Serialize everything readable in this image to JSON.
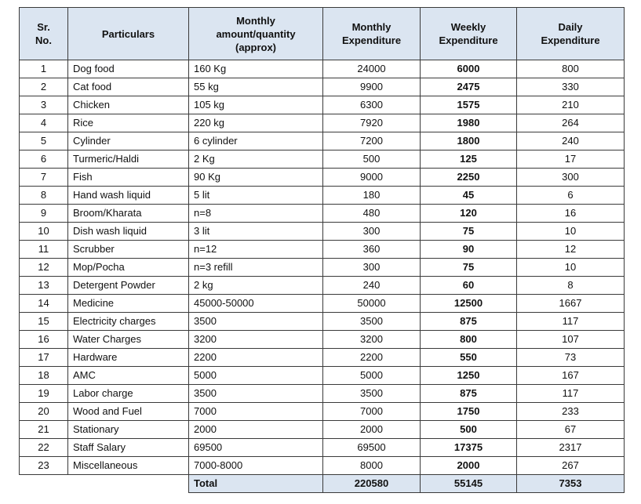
{
  "table": {
    "header": {
      "sr": [
        "Sr.",
        "No."
      ],
      "particulars": "Particulars",
      "quantity": [
        "Monthly",
        "amount/quantity",
        "(approx)"
      ],
      "monthly": [
        "Monthly",
        "Expenditure"
      ],
      "weekly": [
        "Weekly",
        "Expenditure"
      ],
      "daily": [
        "Daily",
        "Expenditure"
      ]
    },
    "rows": [
      {
        "sr": "1",
        "particulars": "Dog food",
        "quantity": "160 Kg",
        "monthly": "24000",
        "weekly": "6000",
        "daily": "800"
      },
      {
        "sr": "2",
        "particulars": "Cat food",
        "quantity": "55 kg",
        "monthly": "9900",
        "weekly": "2475",
        "daily": "330"
      },
      {
        "sr": "3",
        "particulars": "Chicken",
        "quantity": "105 kg",
        "monthly": "6300",
        "weekly": "1575",
        "daily": "210"
      },
      {
        "sr": "4",
        "particulars": "Rice",
        "quantity": "220 kg",
        "monthly": "7920",
        "weekly": "1980",
        "daily": "264"
      },
      {
        "sr": "5",
        "particulars": "Cylinder",
        "quantity": "6 cylinder",
        "monthly": "7200",
        "weekly": "1800",
        "daily": "240"
      },
      {
        "sr": "6",
        "particulars": "Turmeric/Haldi",
        "quantity": "2 Kg",
        "monthly": "500",
        "weekly": "125",
        "daily": "17"
      },
      {
        "sr": "7",
        "particulars": "Fish",
        "quantity": "90 Kg",
        "monthly": "9000",
        "weekly": "2250",
        "daily": "300"
      },
      {
        "sr": "8",
        "particulars": "Hand wash liquid",
        "quantity": "5 lit",
        "monthly": "180",
        "weekly": "45",
        "daily": "6"
      },
      {
        "sr": "9",
        "particulars": "Broom/Kharata",
        "quantity": "n=8",
        "monthly": "480",
        "weekly": "120",
        "daily": "16"
      },
      {
        "sr": "10",
        "particulars": "Dish wash liquid",
        "quantity": "3 lit",
        "monthly": "300",
        "weekly": "75",
        "daily": "10"
      },
      {
        "sr": "11",
        "particulars": "Scrubber",
        "quantity": "n=12",
        "monthly": "360",
        "weekly": "90",
        "daily": "12"
      },
      {
        "sr": "12",
        "particulars": "Mop/Pocha",
        "quantity": "n=3 refill",
        "monthly": "300",
        "weekly": "75",
        "daily": "10"
      },
      {
        "sr": "13",
        "particulars": "Detergent Powder",
        "quantity": "2 kg",
        "monthly": "240",
        "weekly": "60",
        "daily": "8"
      },
      {
        "sr": "14",
        "particulars": "Medicine",
        "quantity": "45000-50000",
        "monthly": "50000",
        "weekly": "12500",
        "daily": "1667"
      },
      {
        "sr": "15",
        "particulars": "Electricity charges",
        "quantity": "3500",
        "monthly": "3500",
        "weekly": "875",
        "daily": "117"
      },
      {
        "sr": "16",
        "particulars": "Water Charges",
        "quantity": "3200",
        "monthly": "3200",
        "weekly": "800",
        "daily": "107"
      },
      {
        "sr": "17",
        "particulars": "Hardware",
        "quantity": "2200",
        "monthly": "2200",
        "weekly": "550",
        "daily": "73"
      },
      {
        "sr": "18",
        "particulars": "AMC",
        "quantity": "5000",
        "monthly": "5000",
        "weekly": "1250",
        "daily": "167"
      },
      {
        "sr": "19",
        "particulars": "Labor charge",
        "quantity": "3500",
        "monthly": "3500",
        "weekly": "875",
        "daily": "117"
      },
      {
        "sr": "20",
        "particulars": "Wood and Fuel",
        "quantity": "7000",
        "monthly": "7000",
        "weekly": "1750",
        "daily": "233"
      },
      {
        "sr": "21",
        "particulars": "Stationary",
        "quantity": "2000",
        "monthly": "2000",
        "weekly": "500",
        "daily": "67"
      },
      {
        "sr": "22",
        "particulars": "Staff Salary",
        "quantity": "69500",
        "monthly": "69500",
        "weekly": "17375",
        "daily": "2317"
      },
      {
        "sr": "23",
        "particulars": "Miscellaneous",
        "quantity": "7000-8000",
        "monthly": "8000",
        "weekly": "2000",
        "daily": "267"
      }
    ],
    "total": {
      "label": "Total",
      "monthly": "220580",
      "weekly": "55145",
      "daily": "7353"
    }
  },
  "colors": {
    "header_fill": "#dbe5f1",
    "border": "#3a3a3a"
  }
}
